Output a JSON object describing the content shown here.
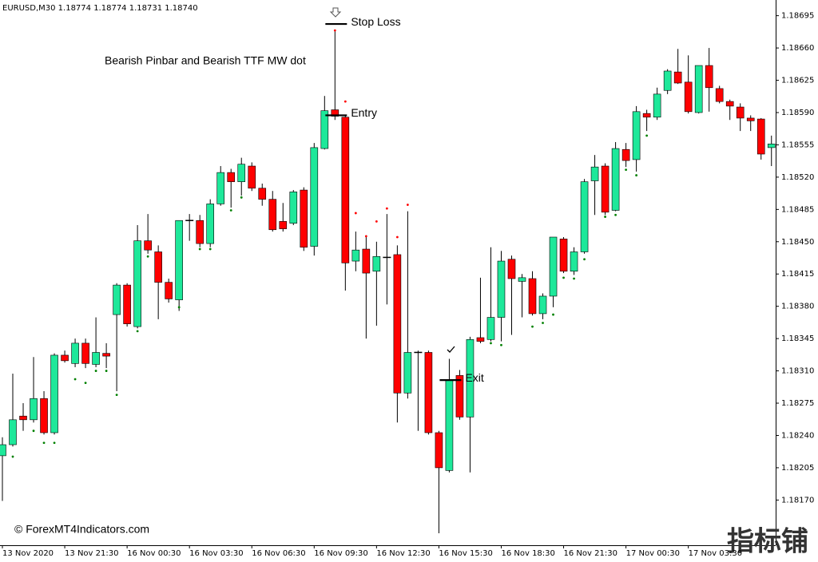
{
  "chart_data": {
    "type": "candlestick",
    "header": "EURUSD,M30 1.18774 1.18774 1.18731 1.18740",
    "annotations": [
      "Bearish Pinbar and Bearish TTF MW dot"
    ],
    "copyright": "© ForexMT4Indicators.com",
    "watermark": "指标铺",
    "up_color": "#1ee89a",
    "down_color": "#ff0000",
    "categories": [
      "13 Nov 2020",
      null,
      null,
      null,
      null,
      null,
      "13 Nov 21:30",
      null,
      null,
      null,
      null,
      null,
      "16 Nov 00:30",
      null,
      null,
      null,
      null,
      null,
      "16 Nov 03:30",
      null,
      null,
      null,
      null,
      null,
      "16 Nov 06:30",
      null,
      null,
      null,
      null,
      null,
      "16 Nov 09:30",
      null,
      null,
      null,
      null,
      null,
      "16 Nov 12:30",
      null,
      null,
      null,
      null,
      null,
      "16 Nov 15:30",
      null,
      null,
      null,
      null,
      null,
      "16 Nov 18:30",
      null,
      null,
      null,
      null,
      null,
      "16 Nov 21:30",
      null,
      null,
      null,
      null,
      null,
      "17 Nov 00:30",
      null,
      null,
      null,
      null,
      null,
      "17 Nov 03:30",
      null,
      null,
      null,
      null,
      null,
      null,
      null,
      null
    ],
    "open": [
      1.18218,
      1.1823,
      1.18261,
      1.18257,
      1.1828,
      1.18243,
      1.18327,
      1.18318,
      1.1834,
      1.18317,
      1.18329,
      1.18371,
      1.18403,
      1.18358,
      1.18451,
      1.18439,
      1.18406,
      1.18387,
      1.18473,
      1.18473,
      1.18448,
      1.18491,
      1.18525,
      1.18515,
      1.18532,
      1.18508,
      1.18496,
      1.18472,
      1.1847,
      1.18506,
      1.18445,
      1.18551,
      1.18593,
      1.18585,
      1.18429,
      1.18442,
      1.18418,
      1.18433,
      1.18436,
      1.18286,
      1.1833,
      1.1833,
      1.18243,
      1.18202,
      1.18305,
      1.1826,
      1.18346,
      1.18344,
      1.18368,
      1.18431,
      1.18407,
      1.1841,
      1.18372,
      1.18391,
      1.18453,
      1.18418,
      1.18439,
      1.18516,
      1.18532,
      1.18484,
      1.1855,
      1.18539,
      1.18589,
      1.18585,
      1.18614,
      1.18634,
      1.18623,
      1.1859,
      1.18641,
      1.18616,
      1.18602,
      1.18596,
      1.18584,
      1.18583,
      1.18552
    ],
    "high": [
      1.18238,
      1.18307,
      1.18275,
      1.18325,
      1.18288,
      1.18329,
      1.18332,
      1.18345,
      1.18345,
      1.18368,
      1.1834,
      1.18405,
      1.18405,
      1.18468,
      1.1848,
      1.18446,
      1.1841,
      1.18473,
      1.1848,
      1.18479,
      1.18496,
      1.18532,
      1.18529,
      1.18541,
      1.18536,
      1.18513,
      1.18505,
      1.18492,
      1.18506,
      1.18509,
      1.18557,
      1.18608,
      1.18678,
      1.18587,
      1.18461,
      1.18455,
      1.1845,
      1.1848,
      1.18446,
      1.18483,
      1.18332,
      1.18332,
      1.18245,
      1.18323,
      1.18311,
      1.18347,
      1.18411,
      1.18444,
      1.1844,
      1.18435,
      1.18415,
      1.18418,
      1.18394,
      1.18455,
      1.18455,
      1.18444,
      1.18518,
      1.18544,
      1.18535,
      1.18558,
      1.18557,
      1.18597,
      1.18593,
      1.18617,
      1.18637,
      1.18659,
      1.18652,
      1.18641,
      1.1866,
      1.18619,
      1.18604,
      1.186,
      1.18587,
      1.18584,
      1.18565
    ],
    "low": [
      1.18169,
      1.18228,
      1.18245,
      1.18254,
      1.18241,
      1.18241,
      1.18319,
      1.18314,
      1.18313,
      1.18314,
      1.18313,
      1.18288,
      1.18358,
      1.18356,
      1.18437,
      1.18366,
      1.18384,
      1.18375,
      1.18451,
      1.18444,
      1.18444,
      1.18489,
      1.18487,
      1.185,
      1.18505,
      1.18489,
      1.18461,
      1.18461,
      1.18468,
      1.1844,
      1.18435,
      1.1855,
      1.18582,
      1.18397,
      1.18418,
      1.18345,
      1.18359,
      1.18382,
      1.18254,
      1.1828,
      1.18245,
      1.18241,
      1.18134,
      1.182,
      1.18257,
      1.182,
      1.1834,
      1.18342,
      1.18342,
      1.18349,
      1.18368,
      1.1837,
      1.18366,
      1.18379,
      1.18416,
      1.18414,
      1.18437,
      1.18479,
      1.18479,
      1.18483,
      1.18531,
      1.18526,
      1.1857,
      1.18582,
      1.1861,
      1.18621,
      1.18589,
      1.18589,
      1.18591,
      1.186,
      1.18582,
      1.1857,
      1.1857,
      1.18539,
      1.18532
    ],
    "close": [
      1.1823,
      1.18257,
      1.18257,
      1.1828,
      1.18243,
      1.18327,
      1.18321,
      1.1834,
      1.18318,
      1.1833,
      1.18326,
      1.18403,
      1.18361,
      1.18451,
      1.18441,
      1.18406,
      1.18388,
      1.18473,
      1.18473,
      1.18448,
      1.18491,
      1.18525,
      1.18515,
      1.18534,
      1.18508,
      1.18496,
      1.18463,
      1.18464,
      1.18504,
      1.18444,
      1.18552,
      1.18592,
      1.18586,
      1.18427,
      1.18441,
      1.18416,
      1.18434,
      1.18433,
      1.18286,
      1.1833,
      1.1833,
      1.18243,
      1.18205,
      1.183,
      1.1826,
      1.18344,
      1.18342,
      1.18368,
      1.18429,
      1.1841,
      1.18411,
      1.18372,
      1.18391,
      1.18455,
      1.18418,
      1.18439,
      1.18515,
      1.18531,
      1.18482,
      1.18551,
      1.18538,
      1.18591,
      1.18585,
      1.1861,
      1.18635,
      1.18622,
      1.18591,
      1.18641,
      1.18617,
      1.18602,
      1.18597,
      1.18584,
      1.18581,
      1.18545,
      1.18556
    ],
    "signal_dots": [
      {
        "color": "#ff0000",
        "indices": [
          32,
          33,
          34,
          35,
          36,
          37,
          38,
          39
        ],
        "prices": [
          1.18679,
          1.18602,
          1.18481,
          1.18456,
          1.18472,
          1.18486,
          1.18455,
          1.1849
        ]
      },
      {
        "color": "#008000",
        "indices": [
          1,
          3,
          4,
          5,
          7,
          8,
          9,
          10,
          11,
          13,
          14,
          17,
          19,
          20,
          22,
          23,
          47,
          48,
          51,
          52,
          53,
          54,
          55,
          56,
          58,
          59,
          60,
          61,
          62
        ],
        "prices": [
          1.18217,
          1.18245,
          1.18232,
          1.18232,
          1.18301,
          1.18297,
          1.1831,
          1.1831,
          1.18284,
          1.18353,
          1.18434,
          1.18379,
          1.18442,
          1.18442,
          1.18484,
          1.18498,
          1.1834,
          1.18338,
          1.18358,
          1.18362,
          1.18371,
          1.18411,
          1.1841,
          1.18431,
          1.18477,
          1.18479,
          1.18528,
          1.18522,
          1.18565
        ]
      }
    ],
    "levels": [
      {
        "label": "Stop Loss",
        "price": 1.18686,
        "index": 32
      },
      {
        "label": "Entry",
        "price": 1.18587,
        "index": 32
      },
      {
        "label": "Exit",
        "price": 1.183,
        "index": 43
      }
    ],
    "ylim": [
      1.18121,
      1.18712
    ],
    "yticks": [
      1.18695,
      {
        "value": 1.1866,
        "label": "1.18660"
      },
      1.18625,
      {
        "value": 1.1859,
        "label": "1.18590"
      },
      1.18555,
      {
        "value": 1.1852,
        "label": "1.18520"
      },
      1.18485,
      {
        "value": 1.1845,
        "label": "1.18450"
      },
      1.18415,
      {
        "value": 1.1838,
        "label": "1.18380"
      },
      1.18345,
      {
        "value": 1.1831,
        "label": "1.18310"
      },
      1.18275,
      {
        "value": 1.1824,
        "label": "1.18240"
      },
      1.18205,
      {
        "value": 1.1817,
        "label": "1.18170"
      }
    ]
  }
}
